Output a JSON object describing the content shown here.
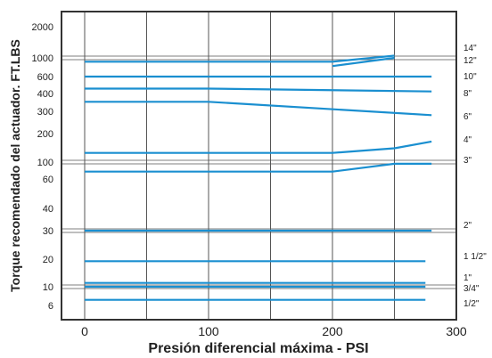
{
  "chart_data": {
    "type": "line",
    "title": "",
    "xlabel": "Presión diferencial máxima - PSI",
    "ylabel": "Torque recomendado del actuador. FT.LBS",
    "xlim": [
      0,
      300
    ],
    "x_ticks": [
      0,
      100,
      200,
      300
    ],
    "y_ticks": [
      2000,
      1000,
      600,
      400,
      300,
      200,
      100,
      60,
      40,
      30,
      20,
      10,
      6
    ],
    "y_scale": "log",
    "grid": true,
    "series_color": "#1a8fd0",
    "series": [
      {
        "name": "14\"",
        "points": [
          [
            0,
            900
          ],
          [
            200,
            900
          ],
          [
            250,
            1050
          ]
        ]
      },
      {
        "name": "12\"",
        "points": [
          [
            200,
            800
          ],
          [
            250,
            1000
          ]
        ]
      },
      {
        "name": "10\"",
        "points": [
          [
            0,
            600
          ],
          [
            175,
            600
          ],
          [
            280,
            600
          ]
        ]
      },
      {
        "name": "8\"",
        "points": [
          [
            0,
            450
          ],
          [
            100,
            450
          ],
          [
            280,
            420
          ]
        ]
      },
      {
        "name": "6\"",
        "points": [
          [
            0,
            350
          ],
          [
            100,
            350
          ],
          [
            280,
            280
          ]
        ]
      },
      {
        "name": "4\"",
        "points": [
          [
            0,
            125
          ],
          [
            200,
            125
          ],
          [
            250,
            140
          ],
          [
            280,
            165
          ]
        ]
      },
      {
        "name": "3\"",
        "points": [
          [
            0,
            75
          ],
          [
            200,
            75
          ],
          [
            250,
            95
          ],
          [
            280,
            95
          ]
        ]
      },
      {
        "name": "2\"",
        "points": [
          [
            0,
            30
          ],
          [
            280,
            30
          ]
        ]
      },
      {
        "name": "1 1/2\"",
        "points": [
          [
            0,
            19
          ],
          [
            275,
            19
          ]
        ]
      },
      {
        "name": "1\"",
        "points": [
          [
            0,
            11
          ],
          [
            275,
            11
          ]
        ]
      },
      {
        "name": "3/4\"",
        "points": [
          [
            0,
            10
          ],
          [
            275,
            10
          ]
        ]
      },
      {
        "name": "1/2\"",
        "points": [
          [
            0,
            7
          ],
          [
            275,
            7
          ]
        ]
      }
    ]
  }
}
